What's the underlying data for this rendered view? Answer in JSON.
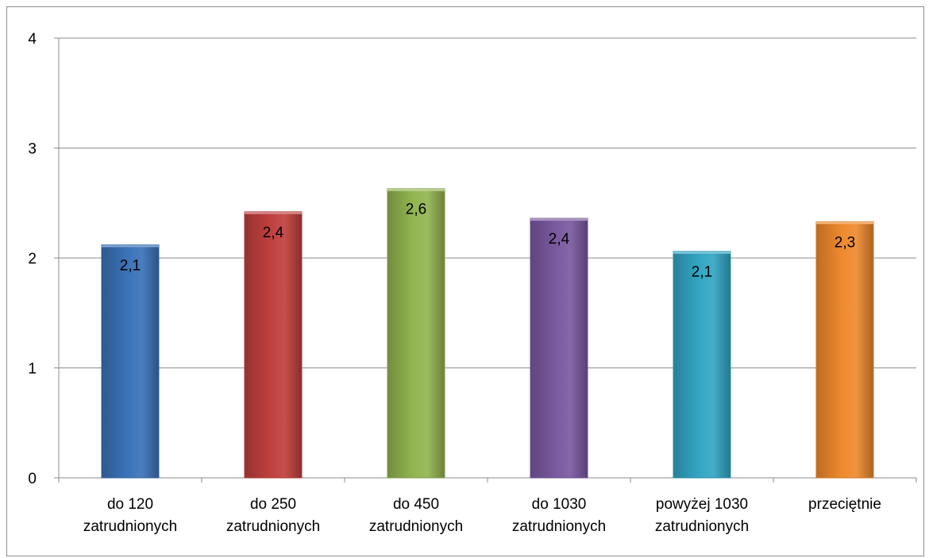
{
  "chart_data": {
    "type": "bar",
    "categories": [
      [
        "do 120",
        "zatrudnionych"
      ],
      [
        "do 250",
        "zatrudnionych"
      ],
      [
        "do 450",
        "zatrudnionych"
      ],
      [
        "do 1030",
        "zatrudnionych"
      ],
      [
        "powyżej 1030",
        "zatrudnionych"
      ],
      [
        "przeciętnie"
      ]
    ],
    "values": [
      2.12,
      2.42,
      2.63,
      2.36,
      2.06,
      2.33
    ],
    "data_labels": [
      "2,1",
      "2,4",
      "2,6",
      "2,4",
      "2,1",
      "2,3"
    ],
    "colors": [
      "#3b73b9",
      "#c0403e",
      "#92b550",
      "#7a5aa0",
      "#33a6c4",
      "#ef8a2e"
    ],
    "ylim": [
      0,
      4
    ],
    "yticks": [
      0,
      1,
      2,
      3,
      4
    ],
    "ytick_labels": [
      "0",
      "1",
      "2",
      "3",
      "4"
    ],
    "grid": true,
    "legend": false,
    "title": "",
    "xlabel": "",
    "ylabel": ""
  }
}
